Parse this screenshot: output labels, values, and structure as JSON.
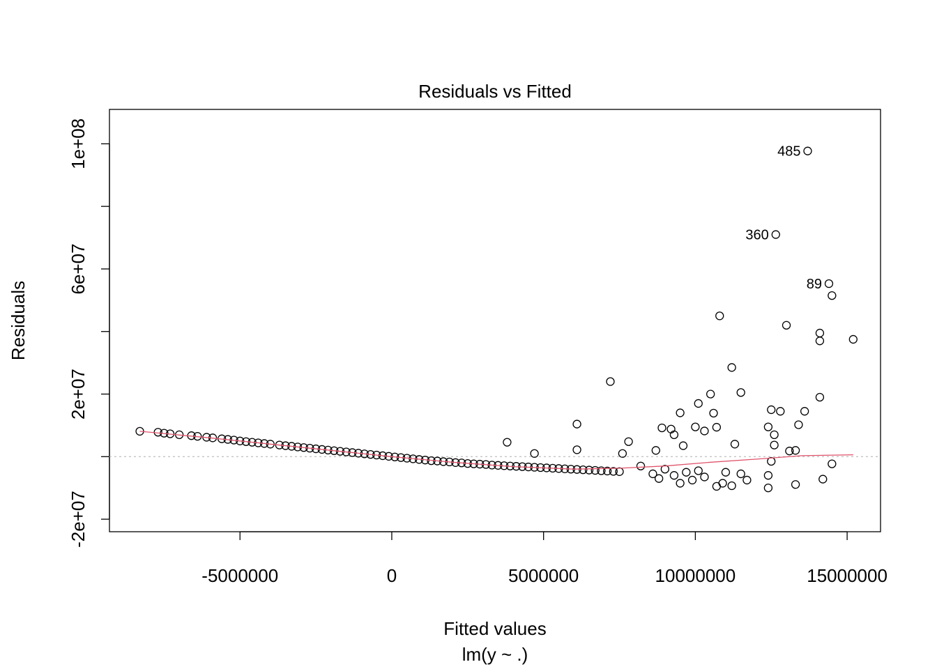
{
  "chart_data": {
    "type": "scatter",
    "title": "Residuals vs Fitted",
    "xlabel": "Fitted values",
    "subtitle": "lm(y ~ .)",
    "ylabel": "Residuals",
    "xlim": [
      -9300000,
      16100000
    ],
    "ylim": [
      -24000000,
      111000000
    ],
    "x_ticks": [
      -5000000,
      0,
      5000000,
      10000000,
      15000000
    ],
    "x_tick_labels": [
      "-5000000",
      "0",
      "5000000",
      "10000000",
      "15000000"
    ],
    "y_ticks": [
      -20000000,
      0,
      20000000,
      40000000,
      60000000,
      80000000,
      100000000
    ],
    "y_tick_labels": [
      "-2e+07",
      "",
      "2e+07",
      "",
      "6e+07",
      "",
      "1e+08"
    ],
    "reference_line_y": 0,
    "colors": {
      "points": "#000000",
      "smooth": "#DF536B",
      "reference": "#bfbfbf"
    },
    "annotations": [
      {
        "label": "485",
        "x": 13700000,
        "y": 97700000
      },
      {
        "label": "360",
        "x": 12650000,
        "y": 71000000
      },
      {
        "label": "89",
        "x": 14400000,
        "y": 55300000
      }
    ],
    "points": [
      [
        -8300000,
        8100000
      ],
      [
        -7700000,
        7800000
      ],
      [
        -7500000,
        7500000
      ],
      [
        -7300000,
        7300000
      ],
      [
        -7000000,
        7000000
      ],
      [
        -6600000,
        6700000
      ],
      [
        -6400000,
        6500000
      ],
      [
        -6100000,
        6200000
      ],
      [
        -5900000,
        6000000
      ],
      [
        -5600000,
        5700000
      ],
      [
        -5400000,
        5500000
      ],
      [
        -5200000,
        5300000
      ],
      [
        -5000000,
        5000000
      ],
      [
        -4800000,
        4800000
      ],
      [
        -4600000,
        4600000
      ],
      [
        -4400000,
        4400000
      ],
      [
        -4200000,
        4200000
      ],
      [
        -4000000,
        4000000
      ],
      [
        -3700000,
        3700000
      ],
      [
        -3500000,
        3500000
      ],
      [
        -3300000,
        3300000
      ],
      [
        -3100000,
        3100000
      ],
      [
        -2900000,
        2900000
      ],
      [
        -2700000,
        2700000
      ],
      [
        -2500000,
        2500000
      ],
      [
        -2300000,
        2300000
      ],
      [
        -2100000,
        2100000
      ],
      [
        -1900000,
        1900000
      ],
      [
        -1700000,
        1700000
      ],
      [
        -1500000,
        1500000
      ],
      [
        -1300000,
        1300000
      ],
      [
        -1100000,
        1100000
      ],
      [
        -900000,
        900000
      ],
      [
        -700000,
        700000
      ],
      [
        -500000,
        500000
      ],
      [
        -300000,
        300000
      ],
      [
        -100000,
        100000
      ],
      [
        100000,
        -100000
      ],
      [
        300000,
        -300000
      ],
      [
        500000,
        -500000
      ],
      [
        700000,
        -700000
      ],
      [
        900000,
        -900000
      ],
      [
        1100000,
        -1100000
      ],
      [
        1300000,
        -1300000
      ],
      [
        1500000,
        -1400000
      ],
      [
        1700000,
        -1600000
      ],
      [
        1900000,
        -1700000
      ],
      [
        2100000,
        -1900000
      ],
      [
        2300000,
        -2000000
      ],
      [
        2500000,
        -2200000
      ],
      [
        2700000,
        -2300000
      ],
      [
        2900000,
        -2400000
      ],
      [
        3100000,
        -2500000
      ],
      [
        3300000,
        -2700000
      ],
      [
        3500000,
        -2800000
      ],
      [
        3700000,
        -2900000
      ],
      [
        3900000,
        -3000000
      ],
      [
        4100000,
        -3100000
      ],
      [
        4300000,
        -3200000
      ],
      [
        4500000,
        -3300000
      ],
      [
        4700000,
        -3400000
      ],
      [
        4900000,
        -3500000
      ],
      [
        5100000,
        -3600000
      ],
      [
        5300000,
        -3700000
      ],
      [
        5500000,
        -3800000
      ],
      [
        5700000,
        -3900000
      ],
      [
        5900000,
        -4000000
      ],
      [
        6100000,
        -4100000
      ],
      [
        6300000,
        -4200000
      ],
      [
        6500000,
        -4300000
      ],
      [
        6700000,
        -4400000
      ],
      [
        6900000,
        -4500000
      ],
      [
        7100000,
        -4600000
      ],
      [
        7300000,
        -4700000
      ],
      [
        7500000,
        -4800000
      ],
      [
        3800000,
        4600000
      ],
      [
        4700000,
        1000000
      ],
      [
        6100000,
        2200000
      ],
      [
        6100000,
        10400000
      ],
      [
        7200000,
        24000000
      ],
      [
        7800000,
        4800000
      ],
      [
        7600000,
        1000000
      ],
      [
        8700000,
        2000000
      ],
      [
        8900000,
        9200000
      ],
      [
        9200000,
        8800000
      ],
      [
        9300000,
        7000000
      ],
      [
        9500000,
        14000000
      ],
      [
        9600000,
        3500000
      ],
      [
        10000000,
        9500000
      ],
      [
        10100000,
        17000000
      ],
      [
        10300000,
        8200000
      ],
      [
        10500000,
        20000000
      ],
      [
        10600000,
        13900000
      ],
      [
        10700000,
        9400000
      ],
      [
        10800000,
        45000000
      ],
      [
        11200000,
        28500000
      ],
      [
        11300000,
        4000000
      ],
      [
        11500000,
        20500000
      ],
      [
        12400000,
        9500000
      ],
      [
        12500000,
        15000000
      ],
      [
        12600000,
        7000000
      ],
      [
        12600000,
        3700000
      ],
      [
        12800000,
        14500000
      ],
      [
        13000000,
        42000000
      ],
      [
        13300000,
        2000000
      ],
      [
        13400000,
        10200000
      ],
      [
        13600000,
        14500000
      ],
      [
        14100000,
        39500000
      ],
      [
        14100000,
        37000000
      ],
      [
        14100000,
        19000000
      ],
      [
        14500000,
        51500000
      ],
      [
        15200000,
        37500000
      ],
      [
        8200000,
        -3000000
      ],
      [
        8600000,
        -5500000
      ],
      [
        8800000,
        -7000000
      ],
      [
        9000000,
        -4000000
      ],
      [
        9300000,
        -6000000
      ],
      [
        9500000,
        -8500000
      ],
      [
        9700000,
        -5000000
      ],
      [
        9900000,
        -7500000
      ],
      [
        10100000,
        -4500000
      ],
      [
        10300000,
        -6500000
      ],
      [
        10700000,
        -9500000
      ],
      [
        10900000,
        -8500000
      ],
      [
        11000000,
        -5000000
      ],
      [
        11200000,
        -9300000
      ],
      [
        11500000,
        -5500000
      ],
      [
        11700000,
        -7500000
      ],
      [
        12400000,
        -6000000
      ],
      [
        12400000,
        -10000000
      ],
      [
        13300000,
        -8900000
      ],
      [
        14200000,
        -7200000
      ],
      [
        14500000,
        -2300000
      ],
      [
        12500000,
        -1500000
      ],
      [
        13100000,
        1800000
      ],
      [
        13700000,
        97700000
      ],
      [
        12650000,
        71000000
      ],
      [
        14400000,
        55300000
      ]
    ],
    "smooth": [
      [
        -8300000,
        8100000
      ],
      [
        -6000000,
        6000000
      ],
      [
        -4000000,
        4000000
      ],
      [
        -2000000,
        2000000
      ],
      [
        0,
        0
      ],
      [
        2000000,
        -1800000
      ],
      [
        4000000,
        -3200000
      ],
      [
        6000000,
        -4000000
      ],
      [
        7500000,
        -3700000
      ],
      [
        9000000,
        -3000000
      ],
      [
        10500000,
        -1800000
      ],
      [
        12000000,
        -800000
      ],
      [
        13500000,
        300000
      ],
      [
        15200000,
        600000
      ]
    ]
  }
}
